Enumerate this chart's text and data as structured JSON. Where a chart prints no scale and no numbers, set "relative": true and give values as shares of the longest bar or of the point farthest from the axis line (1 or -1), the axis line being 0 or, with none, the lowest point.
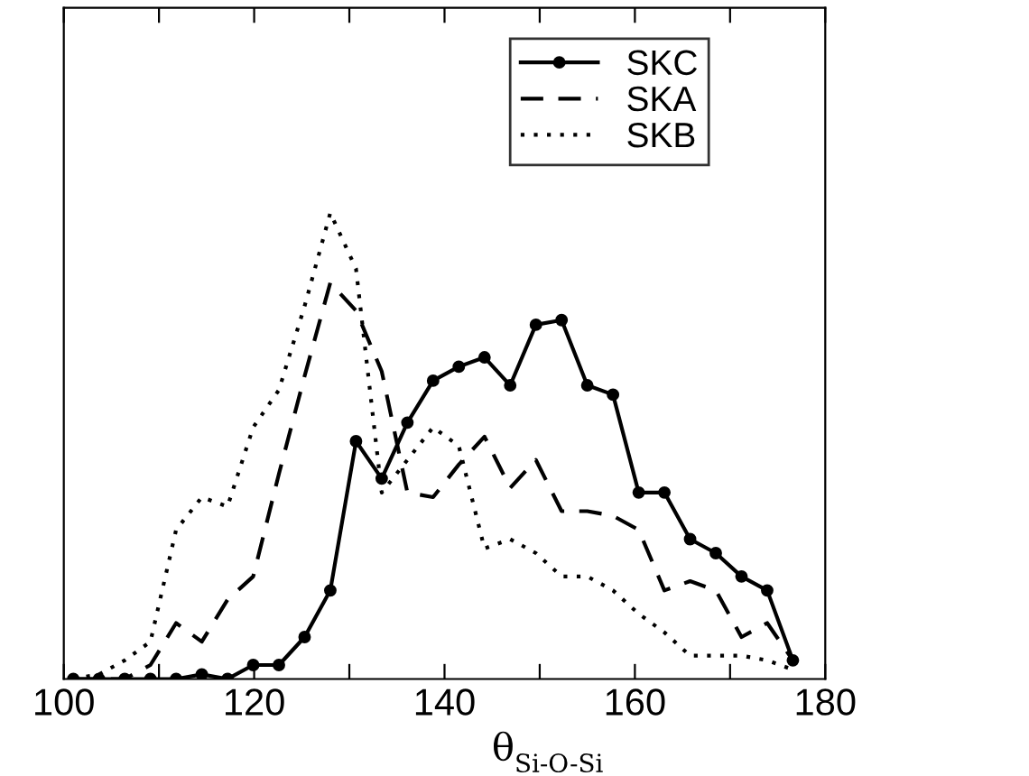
{
  "chart_data": {
    "type": "line",
    "relative": true,
    "xlabel": "θ$_{Si-O-Si}$",
    "xlim": [
      100,
      180
    ],
    "xticks": [
      100,
      {
        "value": 110,
        "label": null
      },
      120,
      {
        "value": 130,
        "label": null
      },
      140,
      {
        "value": 150,
        "label": null
      },
      160,
      {
        "value": 170,
        "label": null
      },
      180
    ],
    "x": [
      101,
      103.7,
      106.4,
      109.1,
      111.8,
      114.5,
      117.2,
      119.9,
      122.6,
      125.3,
      128,
      130.7,
      133.4,
      136.1,
      138.8,
      141.5,
      144.2,
      146.9,
      149.6,
      152.3,
      155,
      157.7,
      160.4,
      163.1,
      165.8,
      168.5,
      171.2,
      173.9,
      176.6
    ],
    "legend": "top right",
    "grid": false,
    "series": [
      {
        "name": "SKC",
        "color": "#000000",
        "marker": "circle",
        "line_style": "solid",
        "values": [
          0,
          0,
          0,
          0,
          0,
          0.01,
          0,
          0.03,
          0.03,
          0.09,
          0.19,
          0.51,
          0.43,
          0.55,
          0.64,
          0.67,
          0.69,
          0.63,
          0.76,
          0.77,
          0.63,
          0.61,
          0.4,
          0.4,
          0.3,
          0.27,
          0.22,
          0.19,
          0.04
        ]
      },
      {
        "name": "SKA",
        "color": "#000000",
        "marker": "none",
        "line_style": "dashed",
        "values": [
          0,
          0,
          0,
          0.03,
          0.12,
          0.08,
          0.17,
          0.22,
          0.44,
          0.65,
          0.85,
          0.79,
          0.66,
          0.4,
          0.39,
          0.46,
          0.52,
          0.41,
          0.47,
          0.36,
          0.36,
          0.35,
          0.32,
          0.19,
          0.21,
          0.19,
          0.09,
          0.12,
          0.04
        ]
      },
      {
        "name": "SKB",
        "color": "#000000",
        "marker": "none",
        "line_style": "dotted",
        "values": [
          0,
          0.01,
          0.04,
          0.08,
          0.32,
          0.39,
          0.37,
          0.54,
          0.62,
          0.8,
          1,
          0.88,
          0.4,
          0.47,
          0.54,
          0.5,
          0.28,
          0.3,
          0.27,
          0.22,
          0.22,
          0.19,
          0.14,
          0.1,
          0.05,
          0.05,
          0.05,
          0.04,
          0.02
        ]
      }
    ]
  }
}
